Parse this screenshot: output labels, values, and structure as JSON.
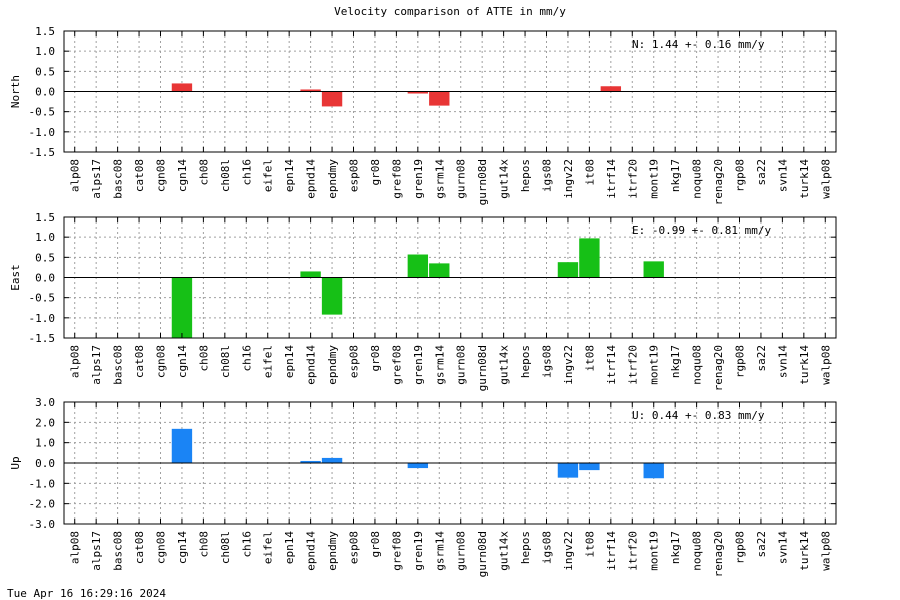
{
  "title": "Velocity comparison of ATTE in mm/y",
  "footer": "Tue Apr 16 16:29:16 2024",
  "chart_data": [
    {
      "type": "bar",
      "ylabel": "North",
      "ylim": [
        -1.5,
        1.5
      ],
      "yticks": [
        -1.5,
        -1.0,
        -0.5,
        0.0,
        0.5,
        1.0,
        1.5
      ],
      "ytick_labels": [
        "-1.5",
        "-1.0",
        "-0.5",
        "0.0",
        "0.5",
        "1.0",
        "1.5"
      ],
      "grid": true,
      "color": "#e83535",
      "annotation": "N:   1.44 +-  0.16 mm/y",
      "categories": [
        "alp08",
        "alps17",
        "basc08",
        "cat08",
        "cgn08",
        "cgn14",
        "ch08",
        "ch08l",
        "ch16",
        "eifel",
        "epn14",
        "epnd14",
        "epndmy",
        "esp08",
        "gr08",
        "gref08",
        "gren19",
        "gsrm14",
        "gurn08",
        "gurn08d",
        "gut14x",
        "hepos",
        "igs08",
        "ingv22",
        "it08",
        "itrf14",
        "itrf20",
        "mont19",
        "nkg17",
        "noqu08",
        "renag20",
        "rgp08",
        "sa22",
        "svn14",
        "turk14",
        "walp08"
      ],
      "values": [
        0,
        0,
        0,
        0,
        0,
        0.2,
        0,
        0,
        0,
        0,
        0,
        0.05,
        -0.37,
        0,
        0,
        0,
        -0.05,
        -0.35,
        0,
        0,
        0,
        0,
        0,
        0,
        0,
        0.13,
        0,
        0,
        0,
        0,
        0,
        0,
        0,
        0,
        0,
        0
      ]
    },
    {
      "type": "bar",
      "ylabel": "East",
      "ylim": [
        -1.5,
        1.5
      ],
      "yticks": [
        -1.5,
        -1.0,
        -0.5,
        0.0,
        0.5,
        1.0,
        1.5
      ],
      "ytick_labels": [
        "-1.5",
        "-1.0",
        "-0.5",
        "0.0",
        "0.5",
        "1.0",
        "1.5"
      ],
      "grid": true,
      "color": "#16c016",
      "annotation": "E:  -0.99 +-  0.81 mm/y",
      "categories": [
        "alp08",
        "alps17",
        "basc08",
        "cat08",
        "cgn08",
        "cgn14",
        "ch08",
        "ch08l",
        "ch16",
        "eifel",
        "epn14",
        "epnd14",
        "epndmy",
        "esp08",
        "gr08",
        "gref08",
        "gren19",
        "gsrm14",
        "gurn08",
        "gurn08d",
        "gut14x",
        "hepos",
        "igs08",
        "ingv22",
        "it08",
        "itrf14",
        "itrf20",
        "mont19",
        "nkg17",
        "noqu08",
        "renag20",
        "rgp08",
        "sa22",
        "svn14",
        "turk14",
        "walp08"
      ],
      "values": [
        0,
        0,
        0,
        0,
        0,
        -1.5,
        0,
        0,
        0,
        0,
        0,
        0.15,
        -0.92,
        0,
        0,
        0,
        0.57,
        0.35,
        0,
        0,
        0,
        0,
        0,
        0.38,
        0.97,
        0,
        0,
        0.4,
        0,
        0,
        0,
        0,
        0,
        0,
        0,
        0
      ]
    },
    {
      "type": "bar",
      "ylabel": "Up",
      "ylim": [
        -3.0,
        3.0
      ],
      "yticks": [
        -3.0,
        -2.0,
        -1.0,
        0.0,
        1.0,
        2.0,
        3.0
      ],
      "ytick_labels": [
        "-3.0",
        "-2.0",
        "-1.0",
        "0.0",
        "1.0",
        "2.0",
        "3.0"
      ],
      "grid": true,
      "color": "#1a84f5",
      "annotation": "U:   0.44 +-  0.83 mm/y",
      "categories": [
        "alp08",
        "alps17",
        "basc08",
        "cat08",
        "cgn08",
        "cgn14",
        "ch08",
        "ch08l",
        "ch16",
        "eifel",
        "epn14",
        "epnd14",
        "epndmy",
        "esp08",
        "gr08",
        "gref08",
        "gren19",
        "gsrm14",
        "gurn08",
        "gurn08d",
        "gut14x",
        "hepos",
        "igs08",
        "ingv22",
        "it08",
        "itrf14",
        "itrf20",
        "mont19",
        "nkg17",
        "noqu08",
        "renag20",
        "rgp08",
        "sa22",
        "svn14",
        "turk14",
        "walp08"
      ],
      "values": [
        0,
        0,
        0,
        0,
        0,
        1.68,
        0,
        0,
        0,
        0,
        0,
        0.1,
        0.25,
        0,
        0,
        0,
        -0.25,
        0,
        0,
        0,
        0,
        0,
        0,
        -0.72,
        -0.35,
        0,
        0,
        -0.75,
        0,
        0,
        0,
        0,
        0,
        0,
        0,
        0
      ]
    }
  ]
}
